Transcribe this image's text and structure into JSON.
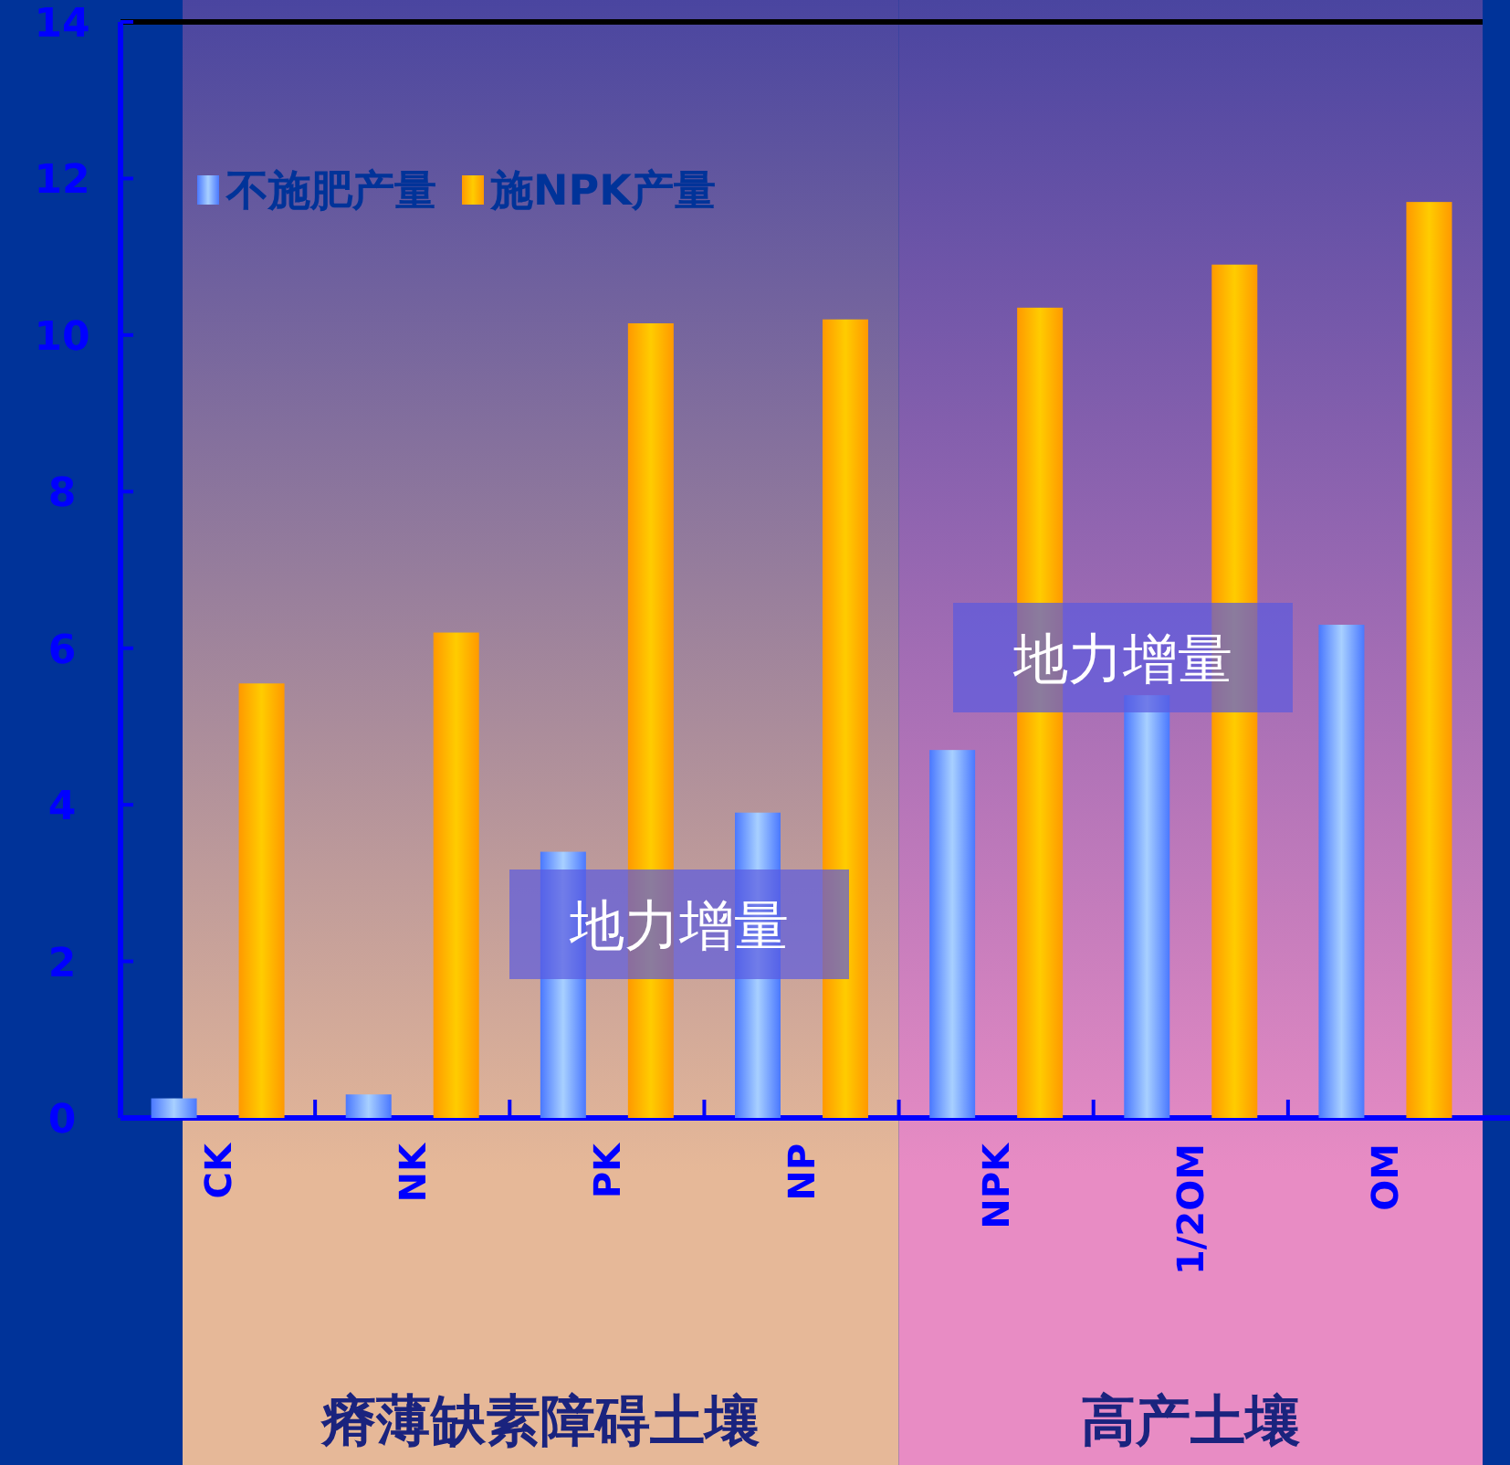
{
  "chart_data": {
    "type": "bar",
    "categories": [
      "CK",
      "NK",
      "PK",
      "NP",
      "NPK",
      "1/2OM",
      "OM"
    ],
    "series": [
      {
        "name": "不施肥产量",
        "color": "#4a78ff",
        "values": [
          0.25,
          0.3,
          3.4,
          3.9,
          4.7,
          5.4,
          6.3
        ]
      },
      {
        "name": "施NPK产量",
        "color": "#ff9900",
        "values": [
          5.55,
          6.2,
          10.15,
          10.2,
          10.35,
          10.9,
          11.7
        ]
      }
    ],
    "ylim": [
      0,
      14
    ],
    "yticks": [
      0,
      2,
      4,
      6,
      8,
      10,
      12,
      14
    ],
    "grid": false,
    "legend": "top left",
    "bands": [
      {
        "axis": "x",
        "from": "CK",
        "to": "NP",
        "label": "瘠薄缺素障碍土壤",
        "color": "#e6b898"
      },
      {
        "axis": "x",
        "from": "NPK",
        "to": "OM",
        "label": "高产土壤",
        "color": "#e88cc4"
      }
    ],
    "annotations": [
      "地力增量",
      "地力增量"
    ]
  }
}
